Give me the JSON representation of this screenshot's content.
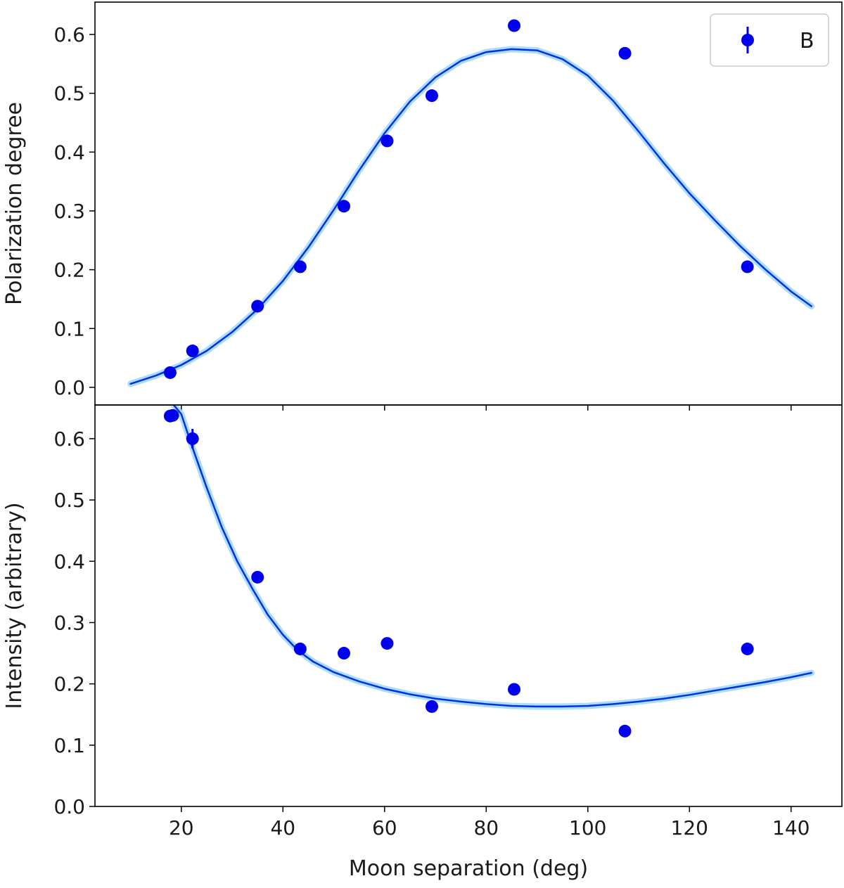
{
  "chart_data": [
    {
      "type": "scatter",
      "panel": "top",
      "xlabel": "",
      "ylabel": "Polarization degree",
      "xlim": [
        3,
        150
      ],
      "ylim": [
        -0.03,
        0.655
      ],
      "xticks": [
        20,
        40,
        60,
        80,
        100,
        120,
        140
      ],
      "yticks": [
        0.0,
        0.1,
        0.2,
        0.3,
        0.4,
        0.5,
        0.6
      ],
      "ytick_labels": [
        "0.0",
        "0.1",
        "0.2",
        "0.3",
        "0.4",
        "0.5",
        "0.6"
      ],
      "xtick_labels_visible": false,
      "grid": false,
      "legend": {
        "position": "top-right",
        "entries": [
          "B"
        ]
      },
      "series": [
        {
          "name": "B",
          "kind": "points-with-errorbars",
          "color": "#0000ee",
          "x": [
            17.8,
            22.2,
            35.0,
            43.4,
            52.0,
            60.5,
            69.3,
            85.5,
            107.3,
            131.4
          ],
          "y": [
            0.025,
            0.062,
            0.138,
            0.205,
            0.308,
            0.419,
            0.496,
            0.615,
            0.568,
            0.205
          ],
          "yerr": [
            0.003,
            0.003,
            0.003,
            0.003,
            0.003,
            0.003,
            0.003,
            0.003,
            0.003,
            0.003
          ]
        },
        {
          "kind": "fit-line",
          "color": "#0033dd",
          "band_color": "#8fd0ff",
          "x": [
            10,
            15,
            20,
            25,
            30,
            35,
            40,
            45,
            50,
            55,
            60,
            65,
            70,
            75,
            80,
            85,
            90,
            95,
            100,
            105,
            110,
            115,
            120,
            125,
            130,
            135,
            140,
            144
          ],
          "y": [
            0.006,
            0.02,
            0.038,
            0.062,
            0.094,
            0.133,
            0.181,
            0.238,
            0.302,
            0.369,
            0.432,
            0.486,
            0.527,
            0.555,
            0.57,
            0.575,
            0.573,
            0.558,
            0.53,
            0.487,
            0.435,
            0.381,
            0.33,
            0.284,
            0.24,
            0.2,
            0.163,
            0.138
          ]
        }
      ]
    },
    {
      "type": "scatter",
      "panel": "bottom",
      "xlabel": "Moon separation (deg)",
      "ylabel": "Intensity (arbitrary)",
      "xlim": [
        3,
        150
      ],
      "ylim": [
        0.0,
        0.655
      ],
      "xticks": [
        20,
        40,
        60,
        80,
        100,
        120,
        140
      ],
      "xtick_labels": [
        "20",
        "40",
        "60",
        "80",
        "100",
        "120",
        "140"
      ],
      "yticks": [
        0.0,
        0.1,
        0.2,
        0.3,
        0.4,
        0.5,
        0.6
      ],
      "ytick_labels": [
        "0.0",
        "0.1",
        "0.2",
        "0.3",
        "0.4",
        "0.5",
        "0.6"
      ],
      "grid": false,
      "series": [
        {
          "name": "B",
          "kind": "points-with-errorbars",
          "color": "#0000ee",
          "x": [
            17.8,
            18.3,
            22.2,
            35.0,
            43.4,
            52.0,
            60.5,
            69.3,
            85.5,
            107.3,
            131.4
          ],
          "y": [
            0.637,
            0.638,
            0.6,
            0.374,
            0.257,
            0.25,
            0.266,
            0.163,
            0.191,
            0.123,
            0.257
          ],
          "yerr": [
            0.005,
            0.005,
            0.016,
            0.005,
            0.005,
            0.005,
            0.005,
            0.005,
            0.005,
            0.005,
            0.005
          ]
        },
        {
          "kind": "fit-line",
          "color": "#0033dd",
          "band_color": "#8fd0ff",
          "x": [
            18.5,
            20,
            22,
            25,
            28,
            31,
            34,
            37,
            40,
            43,
            46,
            50,
            55,
            60,
            65,
            70,
            75,
            80,
            85,
            90,
            95,
            100,
            105,
            110,
            115,
            120,
            125,
            130,
            135,
            140,
            144
          ],
          "y": [
            0.655,
            0.64,
            0.59,
            0.52,
            0.455,
            0.4,
            0.355,
            0.313,
            0.28,
            0.254,
            0.236,
            0.219,
            0.204,
            0.192,
            0.183,
            0.176,
            0.171,
            0.167,
            0.164,
            0.163,
            0.163,
            0.164,
            0.167,
            0.171,
            0.176,
            0.182,
            0.189,
            0.196,
            0.203,
            0.211,
            0.218
          ]
        }
      ]
    }
  ]
}
